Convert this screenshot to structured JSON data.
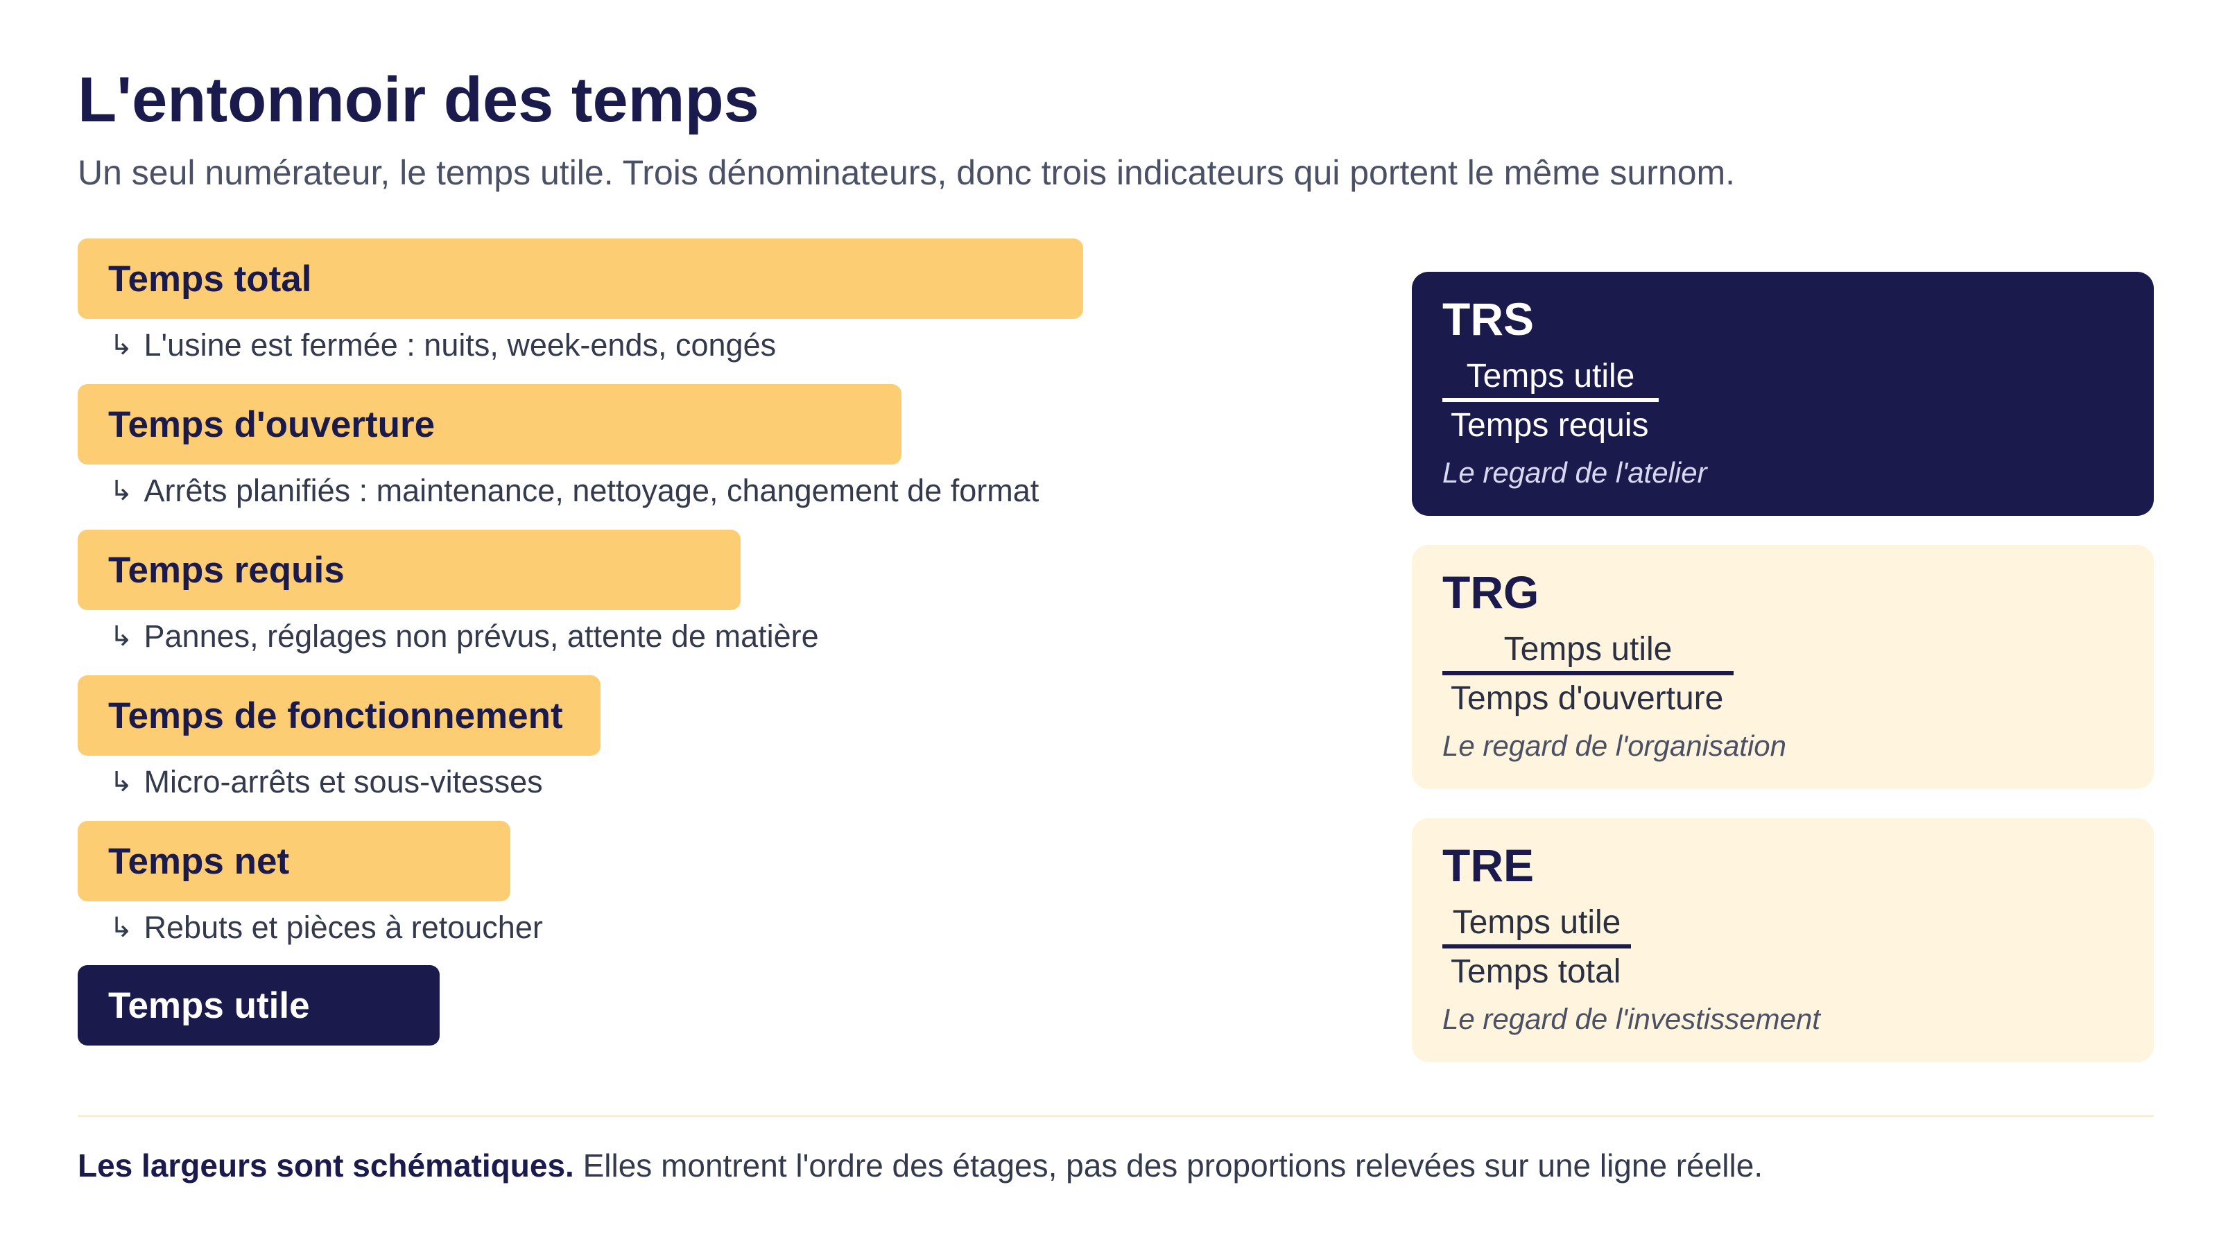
{
  "header": {
    "title": "L'entonnoir des temps",
    "subtitle": "Un seul numérateur, le temps utile. Trois dénominateurs, donc trois indicateurs qui portent le même surnom."
  },
  "funnel": {
    "arrow": "↳",
    "stages": [
      {
        "label": "Temps total",
        "loss": "L'usine est fermée : nuits, week-ends, congés"
      },
      {
        "label": "Temps d'ouverture",
        "loss": "Arrêts planifiés : maintenance, nettoyage, changement de format"
      },
      {
        "label": "Temps requis",
        "loss": "Pannes, réglages non prévus, attente de matière"
      },
      {
        "label": "Temps de fonctionnement",
        "loss": "Micro-arrêts et sous-vitesses"
      },
      {
        "label": "Temps net",
        "loss": "Rebuts et pièces à retoucher"
      },
      {
        "label": "Temps utile"
      }
    ]
  },
  "indicators": [
    {
      "name": "TRS",
      "numerator": "Temps utile",
      "denominator": "Temps requis",
      "caption": "Le regard de l'atelier"
    },
    {
      "name": "TRG",
      "numerator": "Temps utile",
      "denominator": "Temps d'ouverture",
      "caption": "Le regard de l'organisation"
    },
    {
      "name": "TRE",
      "numerator": "Temps utile",
      "denominator": "Temps total",
      "caption": "Le regard de l'investissement"
    }
  ],
  "footnote": {
    "bold": "Les largeurs sont schématiques.",
    "text": " Elles montrent l'ordre des étages, pas des proportions relevées sur une ligne réelle."
  },
  "colors": {
    "navy": "#1b1a4d",
    "amber": "#fdcd74",
    "cream": "#fff4dd",
    "muted": "#4a5066"
  }
}
